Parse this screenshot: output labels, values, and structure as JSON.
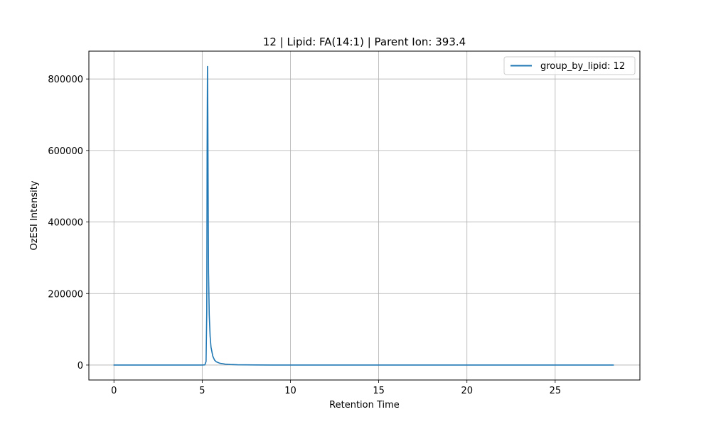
{
  "chart_data": {
    "type": "line",
    "title": "12 | Lipid: FA(14:1) | Parent Ion: 393.4",
    "xlabel": "Retention Time",
    "ylabel": "OzESI Intensity",
    "xlim": [
      -1.42,
      29.8
    ],
    "ylim": [
      -41800,
      877800
    ],
    "x_ticks": [
      0,
      5,
      10,
      15,
      20,
      25
    ],
    "x_tick_labels": [
      "0",
      "5",
      "10",
      "15",
      "20",
      "25"
    ],
    "y_ticks": [
      0,
      200000,
      400000,
      600000,
      800000
    ],
    "y_tick_labels": [
      "0",
      "200000",
      "400000",
      "600000",
      "800000"
    ],
    "grid": true,
    "legend": {
      "placement": "top-right"
    },
    "colors": {
      "series": "#1f77b4",
      "grid": "#b0b0b0",
      "axes": "#000000"
    },
    "series": [
      {
        "name": "group_by_lipid: 12",
        "x": [
          0,
          1,
          2,
          3,
          4,
          5,
          5.15,
          5.22,
          5.26,
          5.28,
          5.3,
          5.32,
          5.34,
          5.36,
          5.4,
          5.45,
          5.5,
          5.6,
          5.7,
          5.8,
          6.0,
          6.3,
          6.6,
          7.0,
          7.5,
          8,
          9,
          10,
          12,
          15,
          20,
          25,
          28.3
        ],
        "y": [
          0,
          0,
          0,
          0,
          0,
          0,
          500,
          10000,
          150000,
          600000,
          835000,
          700000,
          450000,
          260000,
          140000,
          80000,
          50000,
          25000,
          14000,
          9000,
          5000,
          2500,
          1500,
          800,
          500,
          300,
          100,
          50,
          20,
          10,
          5,
          0,
          0
        ]
      }
    ]
  }
}
